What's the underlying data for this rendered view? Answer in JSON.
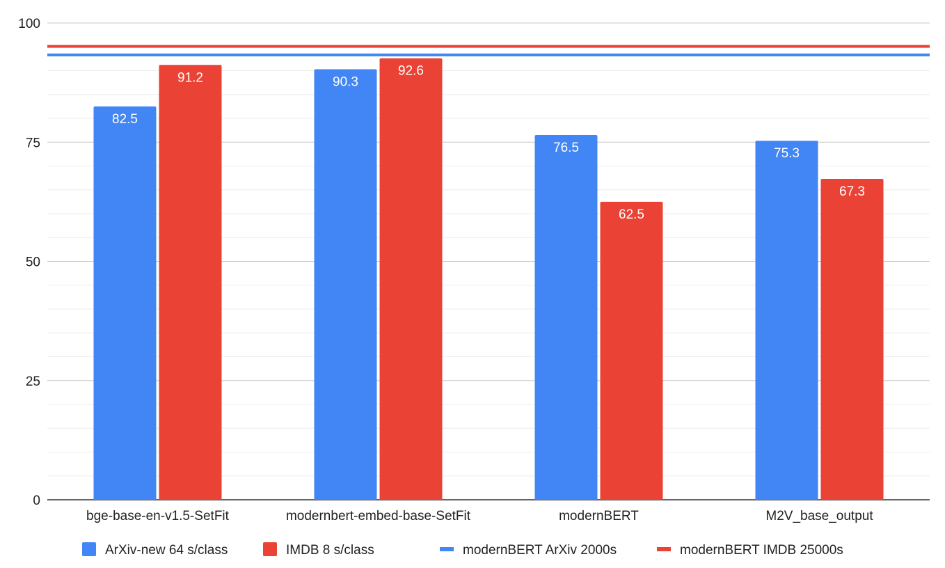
{
  "chart_data": {
    "type": "bar",
    "title": "",
    "xlabel": "",
    "ylabel": "",
    "ylim": [
      0,
      100
    ],
    "yticks": [
      0,
      25,
      50,
      75,
      100
    ],
    "grid": true,
    "categories": [
      "bge-base-en-v1.5-SetFit",
      "modernbert-embed-base-SetFit",
      "modernBERT",
      "M2V_base_output"
    ],
    "series": [
      {
        "name": "ArXiv-new 64 s/class",
        "color": "#4285F4",
        "values": [
          82.5,
          90.3,
          76.5,
          75.3
        ]
      },
      {
        "name": "IMDB 8 s/class",
        "color": "#EA4335",
        "values": [
          91.2,
          92.6,
          62.5,
          67.3
        ]
      }
    ],
    "reference_lines": [
      {
        "name": "modernBERT ArXiv 2000s",
        "color": "#4285F4",
        "value": 93.3
      },
      {
        "name": "modernBERT IMDB 25000s",
        "color": "#EA4335",
        "value": 95.1
      }
    ],
    "legend_position": "bottom"
  }
}
